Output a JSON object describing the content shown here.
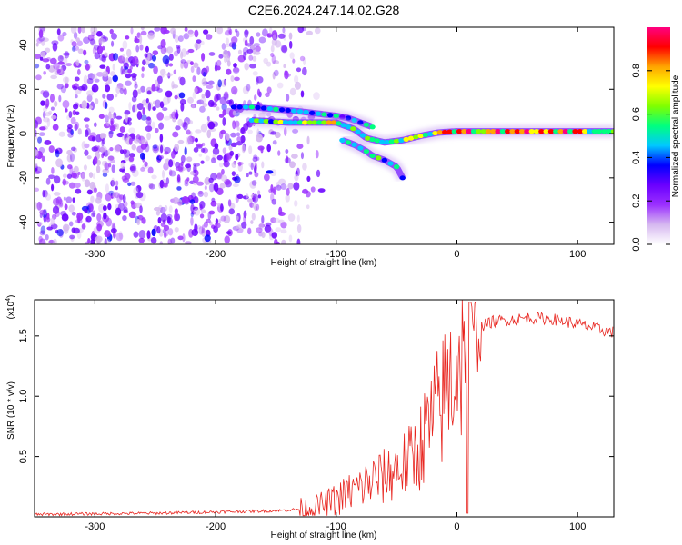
{
  "title": "C2E6.2024.247.14.02.G28",
  "chart_data": [
    {
      "type": "heatmap",
      "xlabel": "Height of straight line (km)",
      "ylabel": "Frequency (Hz)",
      "xlim": [
        -350,
        130
      ],
      "ylim": [
        -50,
        48
      ],
      "xticks": [
        -300,
        -200,
        -100,
        0,
        100
      ],
      "yticks": [
        -40,
        -20,
        0,
        20,
        40
      ],
      "colorbar": {
        "label": "Normalized spectral amplitude",
        "range": [
          0,
          1
        ],
        "ticks": [
          0.0,
          0.2,
          0.4,
          0.6,
          0.8
        ],
        "colors": [
          "#ffffff",
          "#d6b8f0",
          "#9b30ff",
          "#6a00ff",
          "#0000ff",
          "#00c8ff",
          "#00ff80",
          "#7fff00",
          "#ffff00",
          "#ffa500",
          "#ff0000",
          "#ff0080"
        ]
      },
      "main_track": {
        "x": [
          -170,
          -140,
          -120,
          -100,
          -85,
          -75,
          -60,
          -45,
          -30,
          -15,
          0,
          20,
          50,
          80,
          110,
          130
        ],
        "y": [
          6,
          5,
          5,
          5,
          2,
          -2,
          -4,
          -3,
          -1,
          0.5,
          1,
          1,
          1,
          1,
          1,
          1
        ]
      },
      "upper_branch": {
        "x": [
          -185,
          -170,
          -150,
          -130,
          -115,
          -100,
          -90,
          -80,
          -70
        ],
        "y": [
          12,
          12,
          11,
          10,
          9,
          8,
          7,
          5,
          3
        ]
      },
      "lower_branch": {
        "x": [
          -95,
          -85,
          -75,
          -70,
          -60,
          -50,
          -45
        ],
        "y": [
          -3,
          -5,
          -8,
          -10,
          -12,
          -15,
          -20
        ]
      },
      "noise_region_x": [
        -350,
        -140
      ]
    },
    {
      "type": "line",
      "xlabel": "Height of straight line (km)",
      "ylabel": "SNR (10 * v/v)",
      "y_multiplier": "(x10",
      "y_multiplier_exp": "4",
      "xlim": [
        -350,
        130
      ],
      "ylim": [
        0,
        1.8
      ],
      "xticks": [
        -300,
        -200,
        -100,
        0,
        100
      ],
      "yticks": [
        0.5,
        1.0,
        1.5
      ],
      "series": [
        {
          "color": "#e8251f",
          "x": [
            -350,
            -250,
            -200,
            -150,
            -120,
            -100,
            -90,
            -80,
            -70,
            -60,
            -50,
            -40,
            -30,
            -20,
            -10,
            0,
            10,
            20,
            30,
            40,
            60,
            80,
            100,
            120,
            130
          ],
          "y": [
            0.02,
            0.03,
            0.04,
            0.05,
            0.07,
            0.14,
            0.2,
            0.24,
            0.3,
            0.33,
            0.4,
            0.45,
            0.6,
            0.8,
            1.0,
            1.3,
            1.45,
            1.58,
            1.62,
            1.63,
            1.65,
            1.64,
            1.6,
            1.55,
            1.53
          ]
        }
      ]
    }
  ]
}
